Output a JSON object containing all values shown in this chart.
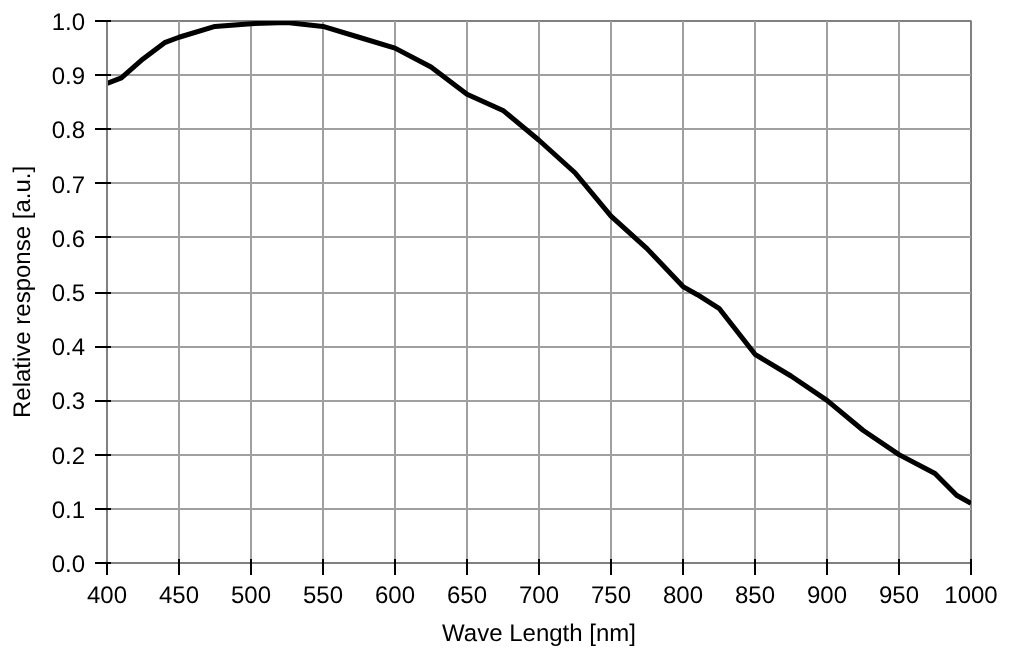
{
  "chart_data": {
    "type": "line",
    "xlabel": "Wave Length [nm]",
    "ylabel": "Relative response [a.u.]",
    "x": [
      400,
      410,
      425,
      440,
      450,
      475,
      500,
      525,
      550,
      575,
      600,
      625,
      650,
      675,
      700,
      725,
      750,
      775,
      800,
      810,
      825,
      850,
      875,
      900,
      925,
      950,
      975,
      990,
      1000
    ],
    "series": [
      {
        "color": "#000000",
        "values": [
          0.885,
          0.895,
          0.93,
          0.96,
          0.97,
          0.99,
          0.995,
          0.997,
          0.99,
          0.97,
          0.95,
          0.915,
          0.865,
          0.835,
          0.78,
          0.72,
          0.64,
          0.58,
          0.51,
          0.495,
          0.47,
          0.385,
          0.345,
          0.3,
          0.245,
          0.2,
          0.165,
          0.125,
          0.11
        ]
      }
    ],
    "xlim": [
      400,
      1000
    ],
    "ylim": [
      0,
      1
    ],
    "xticks": [
      400,
      450,
      500,
      550,
      600,
      650,
      700,
      750,
      800,
      850,
      900,
      950,
      1000
    ],
    "yticks": [
      {
        "value": 0,
        "label": "0.0"
      },
      0.1,
      0.2,
      0.3,
      0.4,
      0.5,
      0.6,
      0.7,
      0.8,
      0.9,
      {
        "value": 1,
        "label": "1.0"
      }
    ],
    "grid": true,
    "marker": "none",
    "line_style": "solid"
  }
}
